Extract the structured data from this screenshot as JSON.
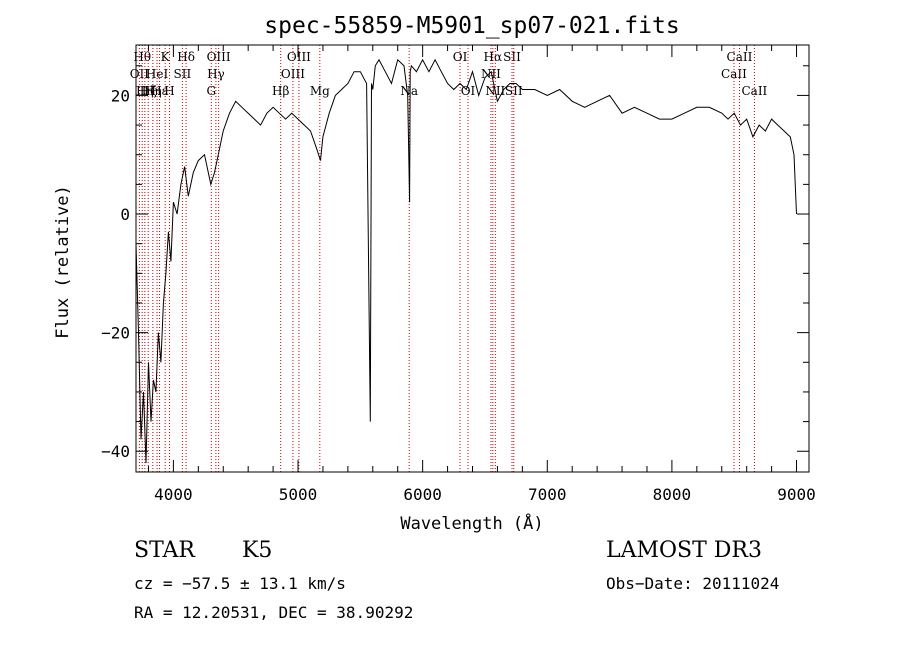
{
  "chart_data": {
    "type": "line",
    "title": "spec-55859-M5901_sp07-021.fits",
    "xlabel": "Wavelength (Å)",
    "ylabel": "Flux (relative)",
    "xlim": [
      3700,
      9100
    ],
    "ylim": [
      -43.5,
      28.5
    ],
    "x_ticks": [
      4000,
      5000,
      6000,
      7000,
      8000,
      9000
    ],
    "y_ticks": [
      -40,
      -20,
      0,
      20
    ],
    "grid": false,
    "line_color": "#000000",
    "marker_color": "#cc0000",
    "series": [
      {
        "x": [
          3700,
          3720,
          3740,
          3760,
          3780,
          3800,
          3820,
          3840,
          3860,
          3880,
          3900,
          3920,
          3940,
          3960,
          3980,
          4000,
          4030,
          4060,
          4090,
          4120,
          4160,
          4200,
          4250,
          4300,
          4330,
          4360,
          4400,
          4450,
          4500,
          4550,
          4600,
          4650,
          4700,
          4750,
          4800,
          4850,
          4900,
          4950,
          5000,
          5050,
          5100,
          5150,
          5180,
          5200,
          5250,
          5300,
          5350,
          5400,
          5450,
          5500,
          5550,
          5580,
          5590,
          5600,
          5620,
          5650,
          5700,
          5750,
          5800,
          5850,
          5880,
          5895,
          5900,
          5910,
          5950,
          6000,
          6050,
          6100,
          6150,
          6200,
          6250,
          6300,
          6350,
          6400,
          6450,
          6500,
          6550,
          6600,
          6650,
          6700,
          6750,
          6800,
          6900,
          7000,
          7100,
          7200,
          7300,
          7400,
          7500,
          7600,
          7700,
          7800,
          7900,
          8000,
          8100,
          8200,
          8300,
          8400,
          8450,
          8500,
          8550,
          8600,
          8650,
          8700,
          8750,
          8800,
          8850,
          8900,
          8950,
          8980,
          9000
        ],
        "values": [
          -5,
          -20,
          -38,
          -30,
          -42,
          -25,
          -35,
          -28,
          -30,
          -20,
          -25,
          -15,
          -10,
          -3,
          -8,
          2,
          0,
          5,
          8,
          3,
          7,
          9,
          10,
          5,
          7,
          10,
          14,
          17,
          19,
          18,
          17,
          16,
          15,
          17,
          18,
          17,
          16,
          17,
          16,
          15,
          14,
          11,
          9,
          13,
          17,
          20,
          21,
          22,
          24,
          24,
          22,
          -35,
          22,
          21,
          25,
          26,
          24,
          22,
          26,
          25,
          20,
          2,
          24,
          25,
          24,
          26,
          24,
          26,
          24,
          22,
          21,
          22,
          21,
          24,
          20,
          23,
          24,
          19,
          21,
          22,
          22,
          21,
          21,
          20,
          21,
          19,
          18,
          19,
          20,
          17,
          18,
          17,
          16,
          16,
          17,
          18,
          18,
          17,
          16,
          17,
          15,
          16,
          13,
          15,
          14,
          16,
          15,
          14,
          13,
          10,
          0
        ]
      }
    ],
    "lines": [
      {
        "wavelength": 3727,
        "label": "OII",
        "row": 1
      },
      {
        "wavelength": 3750,
        "label": "Hθ",
        "row": 0
      },
      {
        "wavelength": 3771,
        "label": "Hη",
        "row": 2
      },
      {
        "wavelength": 3798,
        "label": "Hζ",
        "row": 2
      },
      {
        "wavelength": 3835,
        "label": "Hη",
        "row": 2
      },
      {
        "wavelength": 3869,
        "label": "HeI",
        "row": 1
      },
      {
        "wavelength": 3889,
        "label": "Hε",
        "row": 2
      },
      {
        "wavelength": 3934,
        "label": "K",
        "row": 0
      },
      {
        "wavelength": 3969,
        "label": "H",
        "row": 2
      },
      {
        "wavelength": 4072,
        "label": "SII",
        "row": 1
      },
      {
        "wavelength": 4102,
        "label": "Hδ",
        "row": 0
      },
      {
        "wavelength": 4304,
        "label": "G",
        "row": 2
      },
      {
        "wavelength": 4341,
        "label": "Hγ",
        "row": 1
      },
      {
        "wavelength": 4363,
        "label": "OIII",
        "row": 0
      },
      {
        "wavelength": 4861,
        "label": "Hβ",
        "row": 2
      },
      {
        "wavelength": 4959,
        "label": "OIII",
        "row": 1
      },
      {
        "wavelength": 5007,
        "label": "OIII",
        "row": 0
      },
      {
        "wavelength": 5175,
        "label": "Mg",
        "row": 2
      },
      {
        "wavelength": 5892,
        "label": "Na",
        "row": 2
      },
      {
        "wavelength": 6300,
        "label": "OI",
        "row": 0
      },
      {
        "wavelength": 6364,
        "label": "OI",
        "row": 2
      },
      {
        "wavelength": 6548,
        "label": "NII",
        "row": 1
      },
      {
        "wavelength": 6563,
        "label": "Hα",
        "row": 0
      },
      {
        "wavelength": 6583,
        "label": "NII",
        "row": 2
      },
      {
        "wavelength": 6717,
        "label": "SII",
        "row": 0
      },
      {
        "wavelength": 6731,
        "label": "SII",
        "row": 2
      },
      {
        "wavelength": 8498,
        "label": "CaII",
        "row": 1
      },
      {
        "wavelength": 8542,
        "label": "CaII",
        "row": 0
      },
      {
        "wavelength": 8662,
        "label": "CaII",
        "row": 2
      }
    ]
  },
  "info": {
    "object_class": "STAR",
    "subclass": "K5",
    "survey": "LAMOST DR3",
    "cz": "cz = −57.5 ± 13.1 km/s",
    "obs_date": "Obs−Date: 20111024",
    "coords": "RA =  12.20531, DEC =  38.90292"
  }
}
